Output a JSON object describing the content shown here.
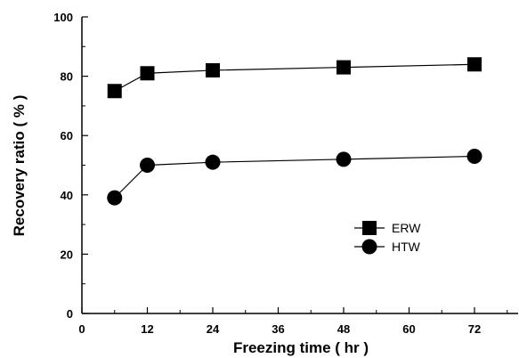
{
  "chart_data": {
    "type": "line",
    "xlabel": "Freezing time ( hr )",
    "ylabel": "Recovery ratio ( % )",
    "xlim": [
      0,
      80
    ],
    "ylim": [
      0,
      100
    ],
    "xticks": [
      0,
      12,
      24,
      36,
      48,
      60,
      72
    ],
    "yticks": [
      0,
      20,
      40,
      60,
      80,
      100
    ],
    "x": [
      6,
      12,
      24,
      48,
      72
    ],
    "series": [
      {
        "name": "ERW",
        "marker": "square",
        "values": [
          75,
          81,
          82,
          83,
          84
        ]
      },
      {
        "name": "HTW",
        "marker": "circle",
        "values": [
          39,
          50,
          51,
          52,
          53
        ]
      }
    ],
    "legend_position": "inside-right",
    "grid": false,
    "color": "#000000"
  }
}
